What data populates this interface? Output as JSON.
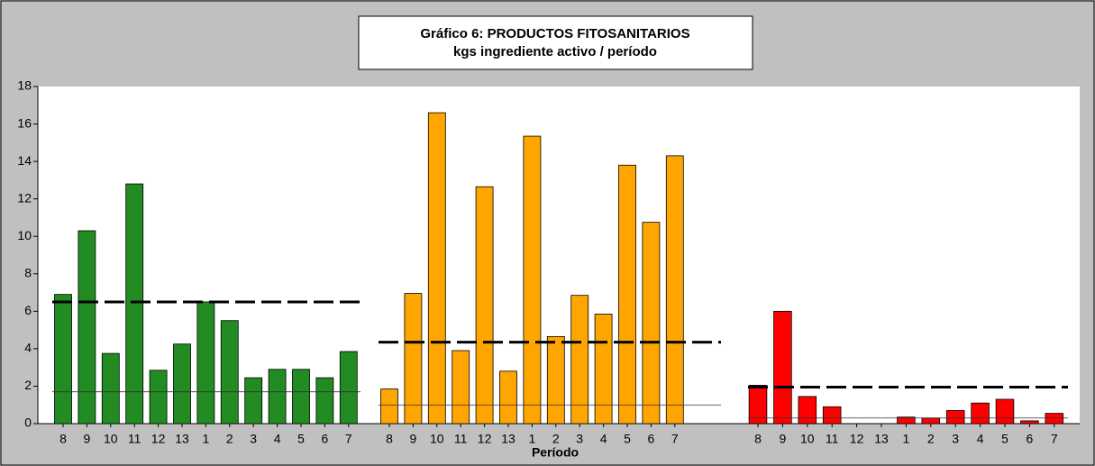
{
  "chart_data": {
    "type": "bar",
    "title": [
      "Gráfico 6: PRODUCTOS FITOSANITARIOS",
      "kgs ingrediente activo / período"
    ],
    "x_label": "Período",
    "categories": [
      "8",
      "9",
      "10",
      "11",
      "12",
      "13",
      "1",
      "2",
      "3",
      "4",
      "5",
      "6",
      "7"
    ],
    "series": [
      {
        "color": "#228b22",
        "values": [
          6.9,
          10.3,
          3.75,
          12.8,
          2.85,
          4.25,
          6.5,
          5.5,
          2.45,
          2.9,
          2.9,
          2.45,
          3.85
        ],
        "dashed_line": 6.5,
        "thin_line": 1.7
      },
      {
        "color": "#ffa500",
        "values": [
          1.85,
          6.95,
          16.6,
          3.9,
          12.65,
          2.8,
          15.35,
          4.65,
          6.85,
          5.85,
          13.8,
          10.75,
          14.3
        ],
        "dashed_line": 4.35,
        "thin_line": 1.0
      },
      {
        "color": "#ff0000",
        "values": [
          2.05,
          6.0,
          1.45,
          0.9,
          0,
          0,
          0.35,
          0.3,
          0.7,
          1.1,
          1.3,
          0.15,
          0.55
        ],
        "dashed_line": 1.95,
        "thin_line": 0.3
      }
    ],
    "ylim": [
      0,
      18
    ],
    "yticks": [
      0,
      2,
      4,
      6,
      8,
      10,
      12,
      14,
      16,
      18
    ]
  }
}
